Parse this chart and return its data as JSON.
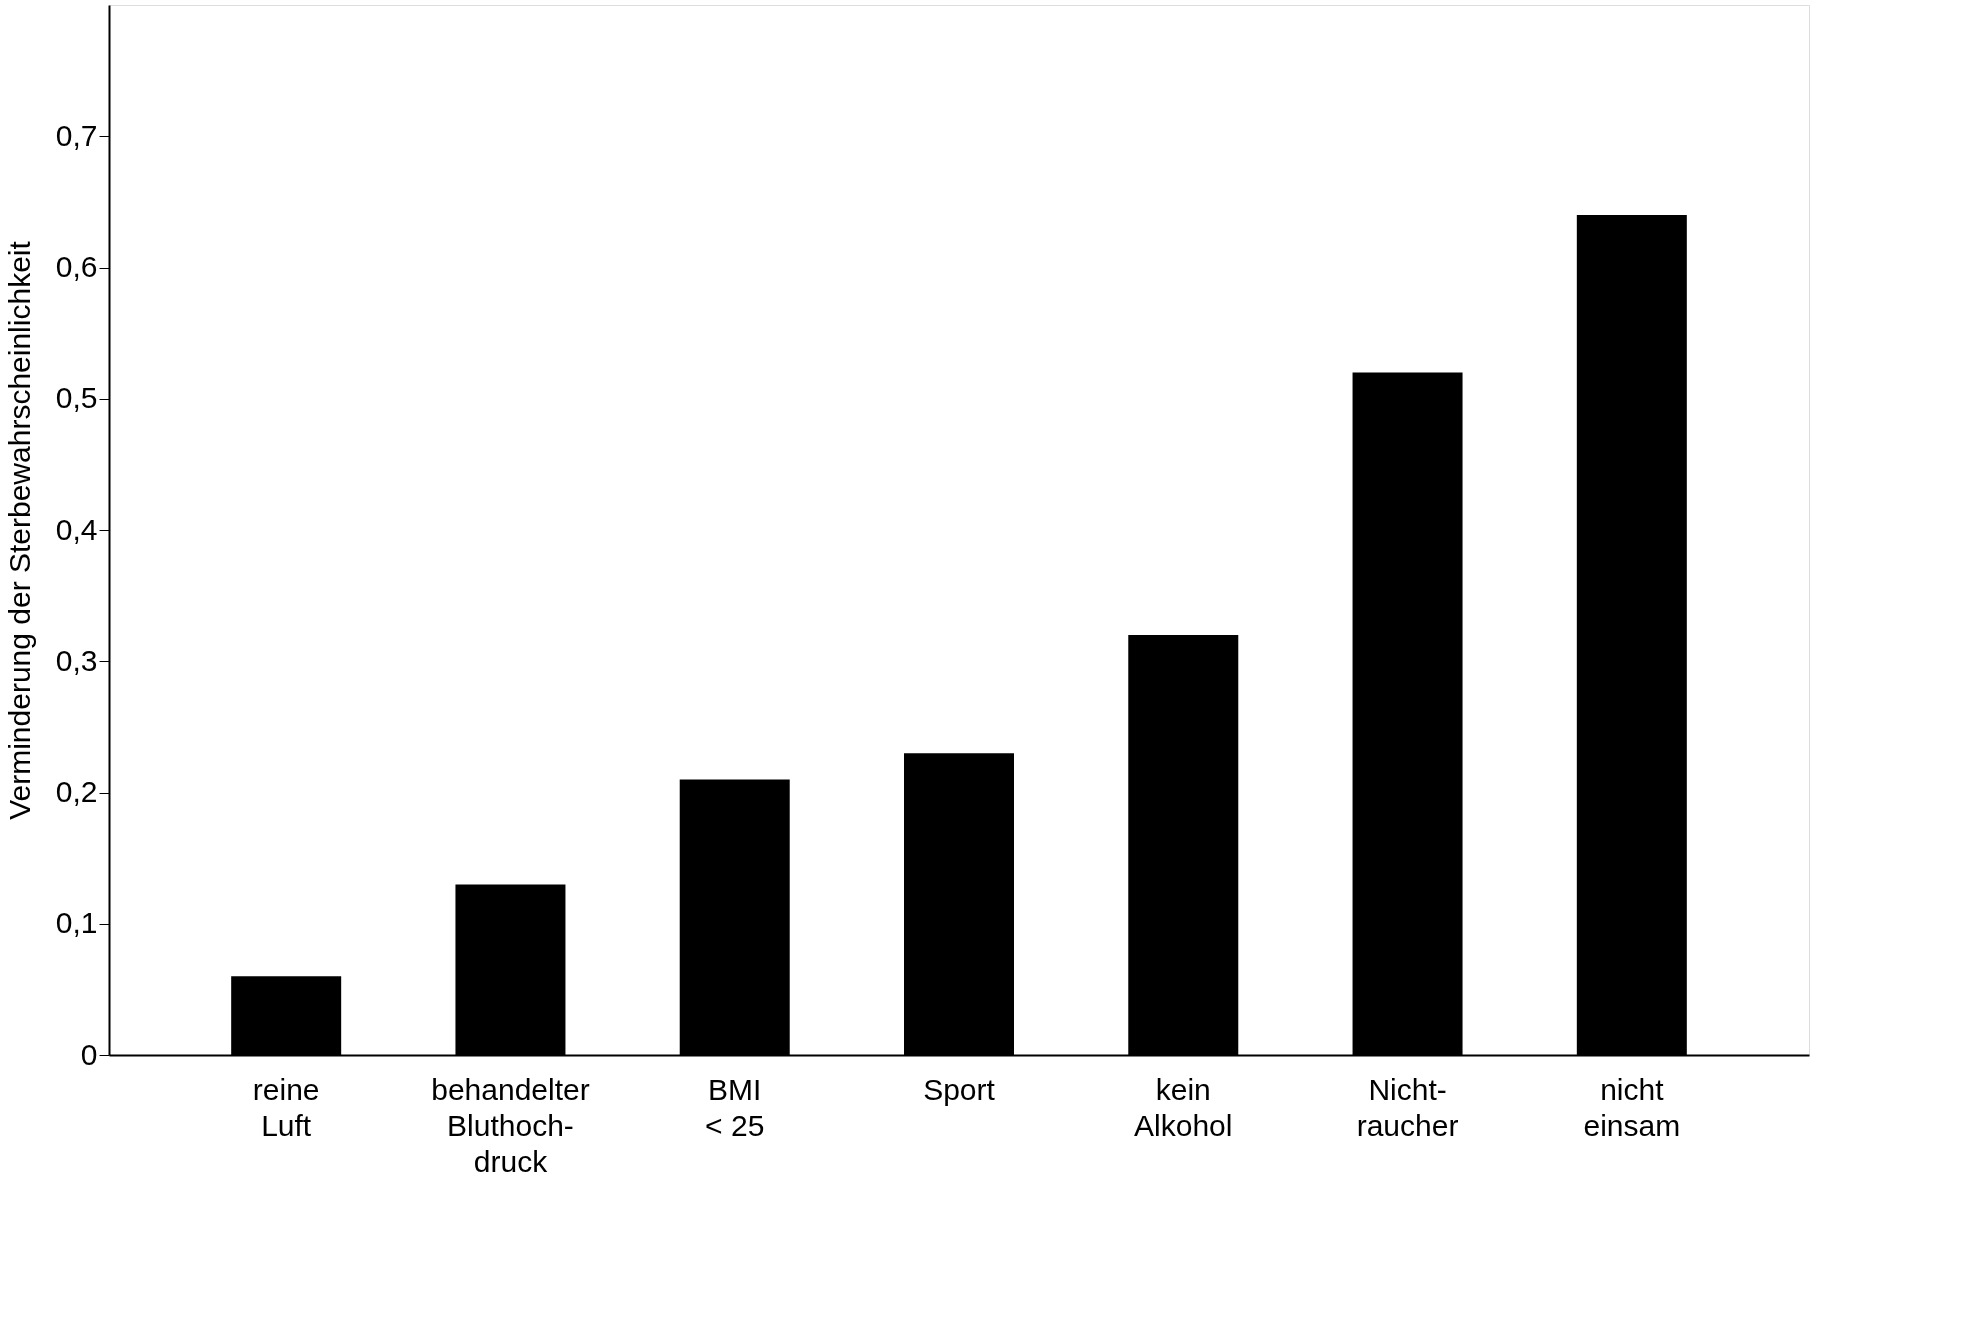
{
  "chart_data": {
    "type": "bar",
    "ylabel": "Verminderung der Sterbewahrscheinlichkeit",
    "categories": [
      "reine\nLuft",
      "behandelter\nBluthoch-\ndruck",
      "BMI\n< 25",
      "Sport",
      "kein\nAlkohol",
      "Nicht-\nraucher",
      "nicht\neinsam"
    ],
    "values": [
      0.06,
      0.13,
      0.21,
      0.23,
      0.32,
      0.52,
      0.64
    ],
    "color": "#000000",
    "ylim": [
      0,
      0.8
    ],
    "yticks": [
      0,
      {
        "value": 0.1,
        "label": "0,1"
      },
      {
        "value": 0.2,
        "label": "0,2"
      },
      {
        "value": 0.3,
        "label": "0,3"
      },
      {
        "value": 0.4,
        "label": "0,4"
      },
      {
        "value": 0.5,
        "label": "0,5"
      },
      {
        "value": 0.6,
        "label": "0,6"
      },
      {
        "value": 0.7,
        "label": "0,7"
      }
    ],
    "grid": false
  }
}
